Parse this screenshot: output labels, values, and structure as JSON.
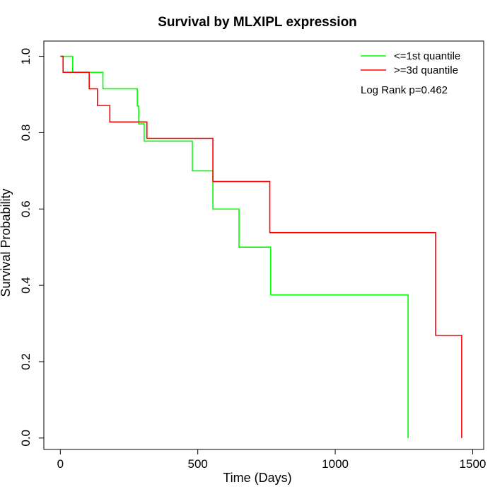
{
  "chart_data": {
    "type": "line",
    "title": "Survival by MLXIPL expression",
    "xlabel": "Time (Days)",
    "ylabel": "Survival Probability",
    "xlim": [
      -60,
      1540
    ],
    "ylim": [
      -0.03,
      1.04
    ],
    "xticks": [
      0,
      500,
      1000,
      1500
    ],
    "yticks": [
      0.0,
      0.2,
      0.4,
      0.6,
      0.8,
      1.0
    ],
    "xtick_labels": [
      "0",
      "500",
      "1000",
      "1500"
    ],
    "ytick_labels": [
      "0.0",
      "0.2",
      "0.4",
      "0.6",
      "0.8",
      "1.0"
    ],
    "grid": false,
    "legend_position": "top-right",
    "annotation": "Log Rank p=0.462",
    "series": [
      {
        "name": "<=1st quantile",
        "color": "#00ff00",
        "x": [
          0,
          45,
          45,
          155,
          155,
          280,
          280,
          285,
          285,
          305,
          305,
          480,
          480,
          555,
          555,
          650,
          650,
          765,
          765,
          1265,
          1265
        ],
        "y": [
          1.0,
          1.0,
          0.958,
          0.958,
          0.915,
          0.915,
          0.87,
          0.87,
          0.823,
          0.823,
          0.778,
          0.778,
          0.7,
          0.7,
          0.6,
          0.6,
          0.5,
          0.5,
          0.375,
          0.375,
          0.0
        ]
      },
      {
        "name": ">=3d quantile",
        "color": "#ff0000",
        "x": [
          0,
          10,
          10,
          105,
          105,
          135,
          135,
          180,
          180,
          315,
          315,
          555,
          555,
          762,
          762,
          1365,
          1365,
          1460,
          1460
        ],
        "y": [
          1.0,
          1.0,
          0.958,
          0.958,
          0.915,
          0.915,
          0.871,
          0.871,
          0.828,
          0.828,
          0.785,
          0.785,
          0.672,
          0.672,
          0.538,
          0.538,
          0.269,
          0.269,
          0.0
        ]
      }
    ]
  }
}
